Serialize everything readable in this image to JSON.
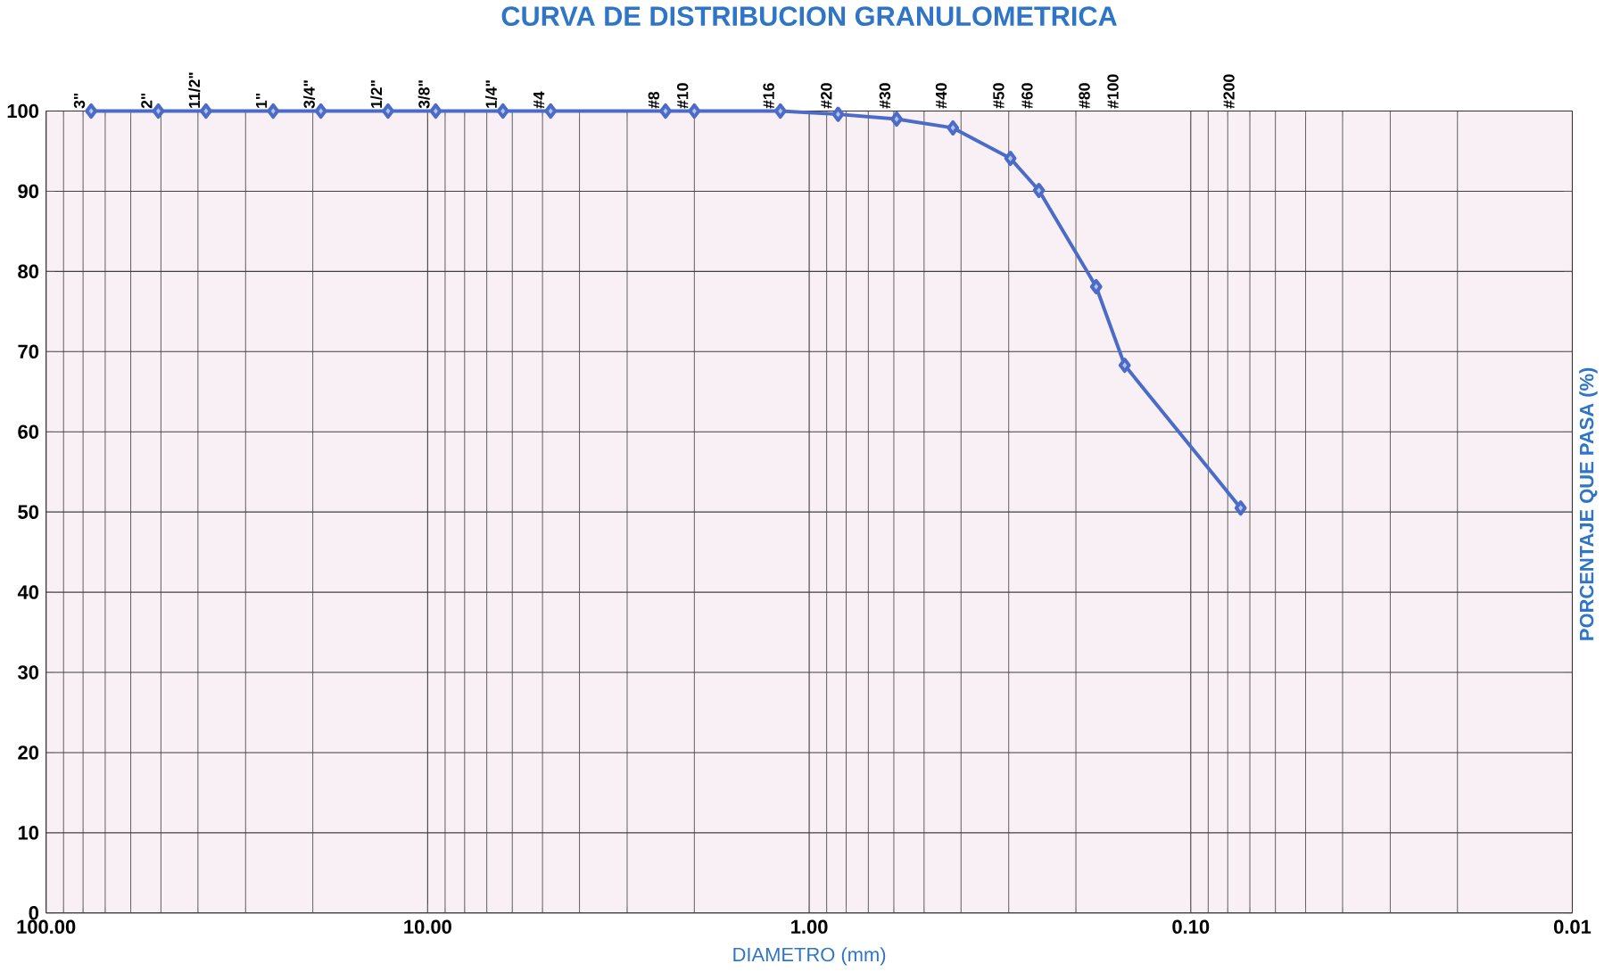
{
  "chart_data": {
    "type": "line",
    "title": "CURVA DE DISTRIBUCION GRANULOMETRICA",
    "xlabel": "DIAMETRO (mm)",
    "ylabel": "PORCENTAJE QUE PASA (%)",
    "x": [
      76.2,
      50.8,
      38.1,
      25.4,
      19.05,
      12.7,
      9.525,
      6.35,
      4.76,
      2.38,
      2.0,
      1.19,
      0.84,
      0.59,
      0.42,
      0.297,
      0.25,
      0.177,
      0.149,
      0.074
    ],
    "values": [
      100,
      100,
      100,
      100,
      100,
      100,
      100,
      100,
      100,
      100,
      100,
      100,
      99.6,
      99.0,
      97.9,
      94.1,
      90.1,
      78.1,
      68.3,
      50.5
    ],
    "color": "#4a6cc8",
    "marker": "diamond",
    "line_style": "solid",
    "log": "x",
    "grid": true,
    "xlim": [
      100,
      0.01
    ],
    "xticks": [
      {
        "value": 100,
        "label": "100.00"
      },
      {
        "value": 10,
        "label": "10.00"
      },
      {
        "value": 1,
        "label": "1.00"
      },
      {
        "value": 0.1,
        "label": "0.10"
      },
      {
        "value": 0.01,
        "label": "0.01"
      }
    ],
    "ylim": [
      0,
      100
    ],
    "yticks": [
      0,
      10,
      20,
      30,
      40,
      50,
      60,
      70,
      80,
      90,
      100
    ],
    "annotations": [
      "3\"",
      "2\"",
      "11/2\"",
      "1\"",
      "3/4\"",
      "1/2\"",
      "3/8\"",
      "1/4\"",
      "#4",
      "#8",
      "#10",
      "#16",
      "#20",
      "#30",
      "#40",
      "#50",
      "#60",
      "#80",
      "#100",
      "#200"
    ]
  }
}
